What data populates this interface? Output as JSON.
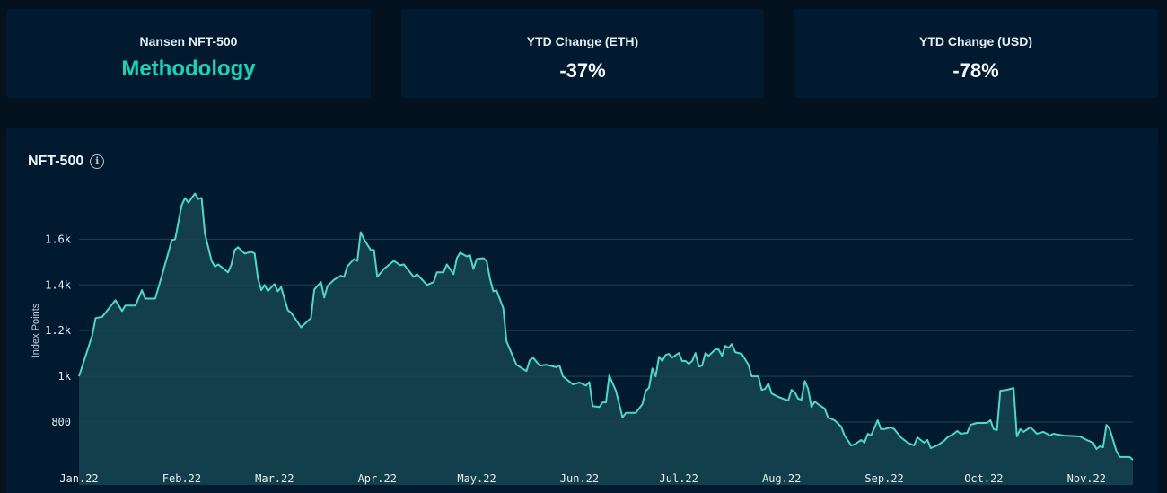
{
  "cards": [
    {
      "label": "Nansen NFT-500",
      "value": "Methodology"
    },
    {
      "label": "YTD Change (ETH)",
      "value": "-37%"
    },
    {
      "label": "YTD Change (USD)",
      "value": "-78%"
    }
  ],
  "panel": {
    "title": "NFT-500",
    "info_icon": "info-circle-icon"
  },
  "colors": {
    "accent": "#1fd1b4",
    "line": "#4fd6c8",
    "fill": "#123f4b",
    "grid": "#1d4257",
    "background": "#011a2f"
  },
  "chart_data": {
    "type": "area",
    "title": "NFT-500",
    "xlabel": "",
    "ylabel": "Index Points",
    "ylim": [
      525,
      1900
    ],
    "xlim": [
      "2022-01-01",
      "2022-11-15"
    ],
    "grid": true,
    "yticks": [
      {
        "v": 800,
        "label": "800"
      },
      {
        "v": 1000,
        "label": "1k"
      },
      {
        "v": 1200,
        "label": "1.2k"
      },
      {
        "v": 1400,
        "label": "1.4k"
      },
      {
        "v": 1600,
        "label": "1.6k"
      }
    ],
    "xticks": [
      {
        "d": "2022-01-01",
        "label": "Jan.22"
      },
      {
        "d": "2022-02-01",
        "label": "Feb.22"
      },
      {
        "d": "2022-03-01",
        "label": "Mar.22"
      },
      {
        "d": "2022-04-01",
        "label": "Apr.22"
      },
      {
        "d": "2022-05-01",
        "label": "May.22"
      },
      {
        "d": "2022-06-01",
        "label": "Jun.22"
      },
      {
        "d": "2022-07-01",
        "label": "Jul.22"
      },
      {
        "d": "2022-08-01",
        "label": "Aug.22"
      },
      {
        "d": "2022-09-01",
        "label": "Sep.22"
      },
      {
        "d": "2022-10-01",
        "label": "Oct.22"
      },
      {
        "d": "2022-11-01",
        "label": "Nov.22"
      }
    ],
    "series": [
      {
        "points": [
          [
            "2022-01-01",
            1000
          ],
          [
            "2022-01-05",
            1180
          ],
          [
            "2022-01-06",
            1255
          ],
          [
            "2022-01-08",
            1260
          ],
          [
            "2022-01-12",
            1333
          ],
          [
            "2022-01-14",
            1286
          ],
          [
            "2022-01-15",
            1310
          ],
          [
            "2022-01-18",
            1310
          ],
          [
            "2022-01-20",
            1377
          ],
          [
            "2022-01-21",
            1340
          ],
          [
            "2022-01-24",
            1340
          ],
          [
            "2022-01-26",
            1440
          ],
          [
            "2022-01-29",
            1596
          ],
          [
            "2022-01-30",
            1600
          ],
          [
            "2022-02-01",
            1749
          ],
          [
            "2022-02-02",
            1780
          ],
          [
            "2022-02-03",
            1760
          ],
          [
            "2022-02-05",
            1800
          ],
          [
            "2022-02-06",
            1776
          ],
          [
            "2022-02-07",
            1780
          ],
          [
            "2022-02-08",
            1623
          ],
          [
            "2022-02-10",
            1505
          ],
          [
            "2022-02-11",
            1480
          ],
          [
            "2022-02-12",
            1490
          ],
          [
            "2022-02-15",
            1455
          ],
          [
            "2022-02-16",
            1490
          ],
          [
            "2022-02-17",
            1553
          ],
          [
            "2022-02-18",
            1565
          ],
          [
            "2022-02-20",
            1537
          ],
          [
            "2022-02-22",
            1545
          ],
          [
            "2022-02-23",
            1537
          ],
          [
            "2022-02-24",
            1427
          ],
          [
            "2022-02-25",
            1377
          ],
          [
            "2022-02-26",
            1400
          ],
          [
            "2022-02-27",
            1373
          ],
          [
            "2022-03-01",
            1404
          ],
          [
            "2022-03-02",
            1372
          ],
          [
            "2022-03-03",
            1390
          ],
          [
            "2022-03-05",
            1290
          ],
          [
            "2022-03-06",
            1278
          ],
          [
            "2022-03-09",
            1215
          ],
          [
            "2022-03-12",
            1255
          ],
          [
            "2022-03-13",
            1380
          ],
          [
            "2022-03-15",
            1412
          ],
          [
            "2022-03-16",
            1345
          ],
          [
            "2022-03-17",
            1396
          ],
          [
            "2022-03-19",
            1423
          ],
          [
            "2022-03-21",
            1440
          ],
          [
            "2022-03-22",
            1435
          ],
          [
            "2022-03-23",
            1482
          ],
          [
            "2022-03-25",
            1513
          ],
          [
            "2022-03-26",
            1505
          ],
          [
            "2022-03-27",
            1631
          ],
          [
            "2022-03-28",
            1600
          ],
          [
            "2022-03-30",
            1553
          ],
          [
            "2022-03-31",
            1553
          ],
          [
            "2022-04-01",
            1435
          ],
          [
            "2022-04-03",
            1470
          ],
          [
            "2022-04-06",
            1505
          ],
          [
            "2022-04-08",
            1486
          ],
          [
            "2022-04-09",
            1490
          ],
          [
            "2022-04-12",
            1435
          ],
          [
            "2022-04-13",
            1447
          ],
          [
            "2022-04-16",
            1400
          ],
          [
            "2022-04-18",
            1412
          ],
          [
            "2022-04-19",
            1455
          ],
          [
            "2022-04-21",
            1455
          ],
          [
            "2022-04-22",
            1490
          ],
          [
            "2022-04-24",
            1447
          ],
          [
            "2022-04-25",
            1517
          ],
          [
            "2022-04-26",
            1541
          ],
          [
            "2022-04-28",
            1525
          ],
          [
            "2022-04-29",
            1530
          ],
          [
            "2022-04-30",
            1470
          ],
          [
            "2022-05-01",
            1513
          ],
          [
            "2022-05-03",
            1517
          ],
          [
            "2022-05-04",
            1505
          ],
          [
            "2022-05-05",
            1427
          ],
          [
            "2022-05-06",
            1372
          ],
          [
            "2022-05-07",
            1376
          ],
          [
            "2022-05-09",
            1298
          ],
          [
            "2022-05-10",
            1153
          ],
          [
            "2022-05-13",
            1051
          ],
          [
            "2022-05-16",
            1023
          ],
          [
            "2022-05-17",
            1070
          ],
          [
            "2022-05-18",
            1082
          ],
          [
            "2022-05-20",
            1047
          ],
          [
            "2022-05-22",
            1051
          ],
          [
            "2022-05-25",
            1040
          ],
          [
            "2022-05-26",
            1047
          ],
          [
            "2022-05-27",
            1000
          ],
          [
            "2022-05-30",
            965
          ],
          [
            "2022-06-01",
            973
          ],
          [
            "2022-06-03",
            960
          ],
          [
            "2022-06-04",
            975
          ],
          [
            "2022-06-05",
            870
          ],
          [
            "2022-06-07",
            866
          ],
          [
            "2022-06-08",
            886
          ],
          [
            "2022-06-09",
            886
          ],
          [
            "2022-06-10",
            1004
          ],
          [
            "2022-06-12",
            937
          ],
          [
            "2022-06-14",
            820
          ],
          [
            "2022-06-15",
            840
          ],
          [
            "2022-06-18",
            840
          ],
          [
            "2022-06-20",
            878
          ],
          [
            "2022-06-21",
            937
          ],
          [
            "2022-06-22",
            950
          ],
          [
            "2022-06-23",
            1035
          ],
          [
            "2022-06-24",
            1000
          ],
          [
            "2022-06-25",
            1086
          ],
          [
            "2022-06-26",
            1067
          ],
          [
            "2022-06-27",
            1094
          ],
          [
            "2022-06-28",
            1098
          ],
          [
            "2022-06-29",
            1082
          ],
          [
            "2022-07-01",
            1102
          ],
          [
            "2022-07-02",
            1067
          ],
          [
            "2022-07-03",
            1067
          ],
          [
            "2022-07-04",
            1055
          ],
          [
            "2022-07-05",
            1067
          ],
          [
            "2022-07-06",
            1102
          ],
          [
            "2022-07-07",
            1043
          ],
          [
            "2022-07-08",
            1047
          ],
          [
            "2022-07-09",
            1102
          ],
          [
            "2022-07-10",
            1090
          ],
          [
            "2022-07-12",
            1118
          ],
          [
            "2022-07-13",
            1118
          ],
          [
            "2022-07-14",
            1090
          ],
          [
            "2022-07-15",
            1133
          ],
          [
            "2022-07-16",
            1125
          ],
          [
            "2022-07-17",
            1141
          ],
          [
            "2022-07-18",
            1106
          ],
          [
            "2022-07-20",
            1098
          ],
          [
            "2022-07-22",
            1051
          ],
          [
            "2022-07-23",
            1000
          ],
          [
            "2022-07-25",
            1000
          ],
          [
            "2022-07-26",
            941
          ],
          [
            "2022-07-27",
            945
          ],
          [
            "2022-07-28",
            969
          ],
          [
            "2022-07-29",
            925
          ],
          [
            "2022-07-31",
            910
          ],
          [
            "2022-08-03",
            894
          ],
          [
            "2022-08-04",
            941
          ],
          [
            "2022-08-05",
            930
          ],
          [
            "2022-08-06",
            902
          ],
          [
            "2022-08-07",
            898
          ],
          [
            "2022-08-08",
            980
          ],
          [
            "2022-08-09",
            945
          ],
          [
            "2022-08-10",
            866
          ],
          [
            "2022-08-11",
            890
          ],
          [
            "2022-08-12",
            878
          ],
          [
            "2022-08-14",
            859
          ],
          [
            "2022-08-15",
            820
          ],
          [
            "2022-08-17",
            808
          ],
          [
            "2022-08-19",
            780
          ],
          [
            "2022-08-20",
            741
          ],
          [
            "2022-08-22",
            698
          ],
          [
            "2022-08-23",
            702
          ],
          [
            "2022-08-25",
            722
          ],
          [
            "2022-08-26",
            710
          ],
          [
            "2022-08-27",
            749
          ],
          [
            "2022-08-28",
            741
          ],
          [
            "2022-08-30",
            808
          ],
          [
            "2022-08-31",
            769
          ],
          [
            "2022-09-01",
            769
          ],
          [
            "2022-09-03",
            777
          ],
          [
            "2022-09-04",
            769
          ],
          [
            "2022-09-06",
            733
          ],
          [
            "2022-09-08",
            710
          ],
          [
            "2022-09-10",
            698
          ],
          [
            "2022-09-11",
            733
          ],
          [
            "2022-09-13",
            710
          ],
          [
            "2022-09-14",
            722
          ],
          [
            "2022-09-15",
            686
          ],
          [
            "2022-09-17",
            698
          ],
          [
            "2022-09-19",
            718
          ],
          [
            "2022-09-20",
            733
          ],
          [
            "2022-09-22",
            749
          ],
          [
            "2022-09-23",
            761
          ],
          [
            "2022-09-24",
            749
          ],
          [
            "2022-09-26",
            753
          ],
          [
            "2022-09-27",
            788
          ],
          [
            "2022-09-29",
            796
          ],
          [
            "2022-10-02",
            796
          ],
          [
            "2022-10-03",
            808
          ],
          [
            "2022-10-04",
            769
          ],
          [
            "2022-10-05",
            765
          ],
          [
            "2022-10-06",
            937
          ],
          [
            "2022-10-08",
            941
          ],
          [
            "2022-10-10",
            949
          ],
          [
            "2022-10-11",
            737
          ],
          [
            "2022-10-12",
            769
          ],
          [
            "2022-10-13",
            757
          ],
          [
            "2022-10-15",
            777
          ],
          [
            "2022-10-16",
            765
          ],
          [
            "2022-10-17",
            749
          ],
          [
            "2022-10-19",
            757
          ],
          [
            "2022-10-21",
            741
          ],
          [
            "2022-10-22",
            749
          ],
          [
            "2022-10-25",
            741
          ],
          [
            "2022-10-30",
            737
          ],
          [
            "2022-11-01",
            722
          ],
          [
            "2022-11-03",
            710
          ],
          [
            "2022-11-04",
            682
          ],
          [
            "2022-11-05",
            694
          ],
          [
            "2022-11-06",
            690
          ],
          [
            "2022-11-07",
            788
          ],
          [
            "2022-11-08",
            769
          ],
          [
            "2022-11-10",
            675
          ],
          [
            "2022-11-11",
            647
          ],
          [
            "2022-11-14",
            647
          ],
          [
            "2022-11-15",
            635
          ]
        ]
      }
    ]
  }
}
